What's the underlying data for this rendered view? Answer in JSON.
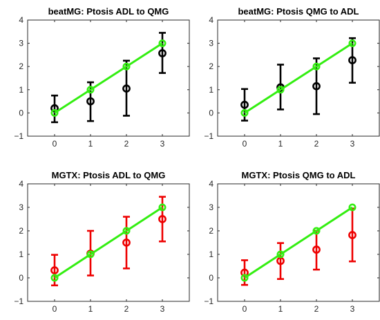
{
  "chart_data": [
    {
      "type": "scatter",
      "title": "beatMG: Ptosis ADL to QMG",
      "xlabel": "",
      "ylabel": "",
      "xlim": [
        -0.75,
        3.75
      ],
      "ylim": [
        -1,
        4
      ],
      "xticks": [
        "0",
        "1",
        "2",
        "3"
      ],
      "yticks": [
        "−1",
        "0",
        "1",
        "2",
        "3",
        "4"
      ],
      "grid": false,
      "series": [
        {
          "kind": "errorbar",
          "color": "#000000",
          "x": [
            0,
            1,
            2,
            3
          ],
          "y": [
            0.2,
            0.5,
            1.05,
            2.57
          ],
          "lower": [
            -0.4,
            -0.35,
            -0.12,
            1.72
          ],
          "upper": [
            0.75,
            1.32,
            2.25,
            3.45
          ]
        },
        {
          "kind": "reference",
          "color": "#33ee11",
          "x": [
            0,
            1,
            2,
            3
          ],
          "y": [
            0,
            1,
            2,
            3
          ]
        }
      ]
    },
    {
      "type": "scatter",
      "title": "beatMG: Ptosis QMG to ADL",
      "xlabel": "",
      "ylabel": "",
      "xlim": [
        -0.75,
        3.75
      ],
      "ylim": [
        -1,
        4
      ],
      "xticks": [
        "0",
        "1",
        "2",
        "3"
      ],
      "yticks": [
        "−1",
        "0",
        "1",
        "2",
        "3",
        "4"
      ],
      "grid": false,
      "series": [
        {
          "kind": "errorbar",
          "color": "#000000",
          "x": [
            0,
            1,
            2,
            3
          ],
          "y": [
            0.35,
            1.1,
            1.15,
            2.27
          ],
          "lower": [
            -0.33,
            0.15,
            -0.05,
            1.3
          ],
          "upper": [
            1.03,
            2.08,
            2.35,
            3.22
          ]
        },
        {
          "kind": "reference",
          "color": "#33ee11",
          "x": [
            0,
            1,
            2,
            3
          ],
          "y": [
            0,
            1,
            2,
            3
          ]
        }
      ]
    },
    {
      "type": "scatter",
      "title": "MGTX: Ptosis ADL to QMG",
      "xlabel": "",
      "ylabel": "",
      "xlim": [
        -0.75,
        3.75
      ],
      "ylim": [
        -1,
        4
      ],
      "xticks": [
        "0",
        "1",
        "2",
        "3"
      ],
      "yticks": [
        "−1",
        "0",
        "1",
        "2",
        "3",
        "4"
      ],
      "grid": false,
      "series": [
        {
          "kind": "errorbar",
          "color": "#ee0000",
          "x": [
            0,
            1,
            2,
            3
          ],
          "y": [
            0.32,
            1.03,
            1.5,
            2.5
          ],
          "lower": [
            -0.32,
            0.1,
            0.4,
            1.55
          ],
          "upper": [
            0.98,
            2.0,
            2.6,
            3.45
          ]
        },
        {
          "kind": "reference",
          "color": "#33ee11",
          "x": [
            0,
            1,
            2,
            3
          ],
          "y": [
            0,
            1,
            2,
            3
          ]
        }
      ]
    },
    {
      "type": "scatter",
      "title": "MGTX: Ptosis QMG to ADL",
      "xlabel": "",
      "ylabel": "",
      "xlim": [
        -0.75,
        3.75
      ],
      "ylim": [
        -1,
        4
      ],
      "xticks": [
        "0",
        "1",
        "2",
        "3"
      ],
      "yticks": [
        "−1",
        "0",
        "1",
        "2",
        "3",
        "4"
      ],
      "grid": false,
      "series": [
        {
          "kind": "errorbar",
          "color": "#ee0000",
          "x": [
            0,
            1,
            2,
            3
          ],
          "y": [
            0.22,
            0.72,
            1.2,
            1.82
          ],
          "lower": [
            -0.3,
            -0.05,
            0.35,
            0.7
          ],
          "upper": [
            0.75,
            1.48,
            2.0,
            2.95
          ]
        },
        {
          "kind": "reference",
          "color": "#33ee11",
          "x": [
            0,
            1,
            2,
            3
          ],
          "y": [
            0,
            1,
            2,
            3
          ]
        }
      ]
    }
  ]
}
